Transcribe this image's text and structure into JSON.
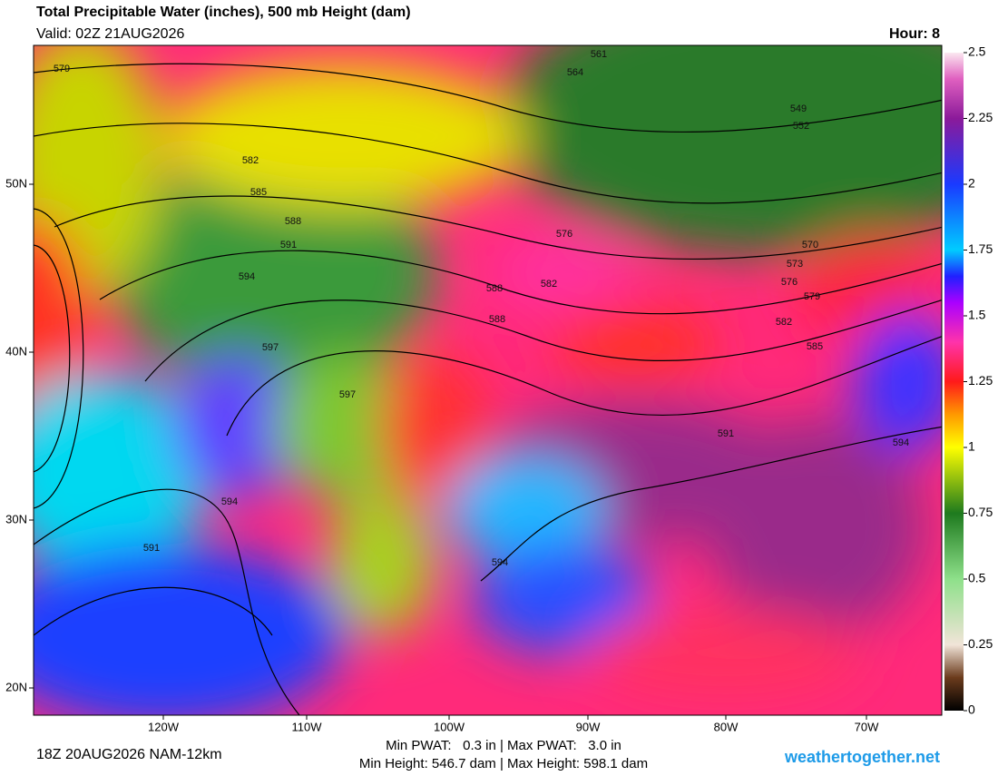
{
  "header": {
    "title": "Total Precipitable Water (inches), 500 mb Height (dam)",
    "valid": "Valid: 02Z 21AUG2026",
    "hour": "Hour: 8"
  },
  "map": {
    "lon_labels": [
      "120W",
      "110W",
      "100W",
      "90W",
      "80W",
      "70W"
    ],
    "lat_labels": [
      "50N",
      "40N",
      "30N",
      "20N"
    ],
    "contour_labels": [
      579,
      582,
      585,
      588,
      591,
      594,
      597,
      597,
      594,
      591,
      594,
      591,
      594,
      585,
      582,
      579,
      576,
      573,
      570,
      552,
      549,
      564,
      561,
      582,
      588,
      588,
      576
    ]
  },
  "colorbar": {
    "range": [
      0,
      2.5
    ],
    "ticks": [
      0,
      0.25,
      0.5,
      0.75,
      1,
      1.25,
      1.5,
      1.75,
      2,
      2.25,
      2.5
    ]
  },
  "footer": {
    "run": "18Z 20AUG2026 NAM-12km",
    "stats": [
      "Min PWAT:   0.3 in | Max PWAT:   3.0 in",
      "Min Height: 546.7 dam | Max Height: 598.1 dam"
    ],
    "site": "weathertogether.net"
  }
}
